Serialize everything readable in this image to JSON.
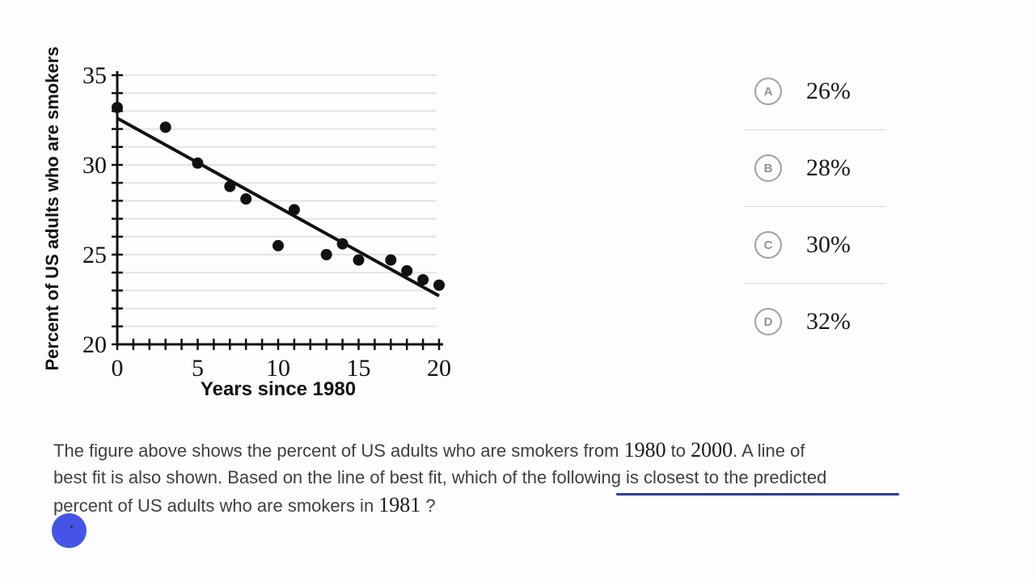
{
  "page": {
    "background": "#fdfdfd"
  },
  "chart_data": {
    "type": "scatter",
    "title": "",
    "xlabel": "Years since 1980",
    "ylabel": "Percent of US adults who are smokers",
    "xlim": [
      0,
      20
    ],
    "ylim": [
      20,
      35
    ],
    "x_tick_interval": 1,
    "y_tick_interval": 1,
    "x_tick_labels": [
      0,
      5,
      10,
      15,
      20
    ],
    "y_tick_labels": [
      20,
      25,
      30,
      35
    ],
    "grid": "horizontal",
    "legend": "none",
    "points": [
      [
        0,
        33.2
      ],
      [
        3,
        32.1
      ],
      [
        5,
        30.1
      ],
      [
        7,
        28.8
      ],
      [
        8,
        28.1
      ],
      [
        10,
        25.5
      ],
      [
        11,
        27.5
      ],
      [
        13,
        25.0
      ],
      [
        14,
        25.6
      ],
      [
        15,
        24.7
      ],
      [
        17,
        24.7
      ],
      [
        18,
        24.1
      ],
      [
        19,
        23.6
      ],
      [
        20,
        23.3
      ]
    ],
    "best_fit_line": {
      "x0": 0,
      "y0": 32.6,
      "x1": 20,
      "y1": 22.7
    },
    "colors": {
      "points": "#111111",
      "line": "#111111",
      "axis": "#111111",
      "grid": "#e3e3e3",
      "labels": "#111111"
    }
  },
  "options": [
    {
      "letter": "A",
      "value": "26%"
    },
    {
      "letter": "B",
      "value": "28%"
    },
    {
      "letter": "C",
      "value": "30%"
    },
    {
      "letter": "D",
      "value": "32%"
    }
  ],
  "question": {
    "lines": [
      [
        {
          "t": "The figure above shows the percent of US adults who are smokers from "
        },
        {
          "t": "1980",
          "f": "serif"
        },
        {
          "t": " to "
        },
        {
          "t": "2000",
          "f": "serif"
        },
        {
          "t": ". A line of"
        }
      ],
      [
        {
          "t": "best fit is also shown. Based on the line of best fit, which of the following is closest to the predicted"
        }
      ],
      [
        {
          "t": "percent of US adults who are smokers in "
        },
        {
          "t": "1981",
          "f": "serif"
        },
        {
          "t": " ?"
        }
      ]
    ]
  },
  "pen": {
    "cursor_color": "#4554e6",
    "underline_color": "#2c3c96"
  }
}
